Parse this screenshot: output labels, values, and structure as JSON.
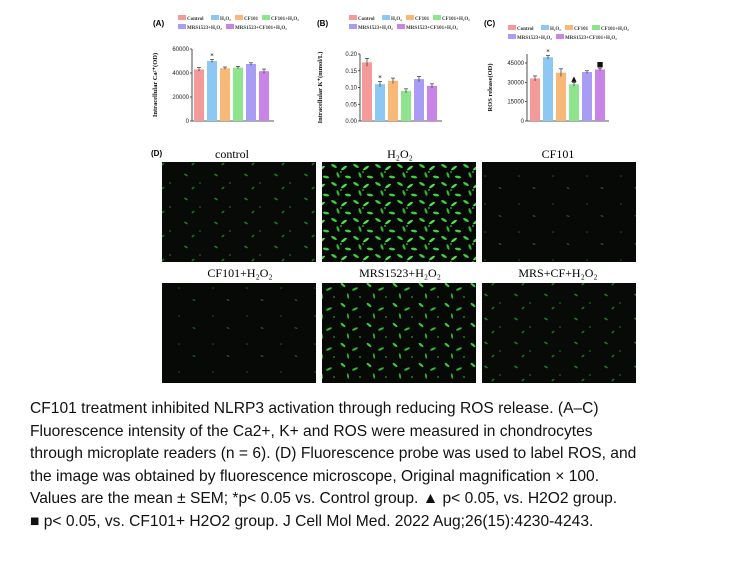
{
  "figure": {
    "panel_labels": {
      "a": "(A)",
      "b": "(B)",
      "c": "(C)",
      "d": "(D)"
    },
    "legend": {
      "control": "Control",
      "h2o2": "H₂O₂",
      "cf101": "CF101",
      "cf101_h2o2": "CF101+H₂O₂",
      "mrs1523_h2o2": "MRS1523+H₂O₂",
      "mrs1523_cf101_h2o2": "MRS1523+CF101+H₂O₂"
    },
    "micrograph_labels": [
      "control",
      "H₂O₂",
      "CF101",
      "CF101+H₂O₂",
      "MRS1523+H₂O₂",
      "MRS+CF+H₂O₂"
    ]
  },
  "colors": {
    "control": "#f59a9a",
    "h2o2": "#8cc8f2",
    "cf101": "#f8b978",
    "cf101_h2o2": "#8ee48c",
    "mrs1523_h2o2": "#a99cf4",
    "mrs1523_cf101_h2o2": "#c883e6"
  },
  "chart_data": [
    {
      "type": "bar",
      "panel": "(A)",
      "ylabel": "Intracellular Ca²⁺(OD)",
      "categories": [
        "Control",
        "H₂O₂",
        "CF101",
        "CF101+H₂O₂",
        "MRS1523+H₂O₂",
        "MRS1523+CF101+H₂O₂"
      ],
      "values": [
        43000,
        50000,
        44000,
        44500,
        47500,
        41500
      ],
      "errors": [
        1500,
        1200,
        1000,
        1000,
        1000,
        1800
      ],
      "markers": [
        "",
        "*",
        "",
        "",
        "",
        ""
      ],
      "yticks": [
        "0",
        "20000",
        "40000",
        "60000"
      ],
      "ylim": [
        0,
        60000
      ]
    },
    {
      "type": "bar",
      "panel": "(B)",
      "ylabel": "Intracellular K⁺(mmol/L)",
      "categories": [
        "Control",
        "H₂O₂",
        "CF101",
        "CF101+H₂O₂",
        "MRS1523+H₂O₂",
        "MRS1523+CF101+H₂O₂"
      ],
      "values": [
        0.175,
        0.11,
        0.12,
        0.09,
        0.125,
        0.105
      ],
      "errors": [
        0.012,
        0.008,
        0.008,
        0.006,
        0.008,
        0.006
      ],
      "markers": [
        "",
        "*",
        "",
        "",
        "",
        ""
      ],
      "yticks": [
        "0.00",
        "0.05",
        "0.10",
        "0.15",
        "0.20"
      ],
      "ylim": [
        0,
        0.2
      ]
    },
    {
      "type": "bar",
      "panel": "(C)",
      "ylabel": "ROS release(OD)",
      "categories": [
        "Control",
        "H₂O₂",
        "CF101",
        "CF101+H₂O₂",
        "MRS1523+H₂O₂",
        "MRS1523+CF101+H₂O₂"
      ],
      "values": [
        33000,
        49500,
        37500,
        28500,
        38000,
        40000
      ],
      "errors": [
        2000,
        1500,
        3000,
        1500,
        1000,
        1000
      ],
      "markers": [
        "",
        "*",
        "",
        "▲",
        "",
        "■"
      ],
      "yticks": [
        "0",
        "15000",
        "30000",
        "45000"
      ],
      "ylim": [
        0,
        52000
      ]
    }
  ],
  "caption": {
    "lines": [
      "CF101 treatment inhibited NLRP3 activation through reducing ROS release. (A–C)",
      "Fluorescence intensity of the Ca2+, K+ and ROS were measured in chondrocytes",
      "through microplate readers (n = 6). (D) Fluorescence probe was used to label ROS, and",
      "the image was obtained by fluorescence microscope, Original magnification × 100.",
      "Values are the mean ± SEM; *p< 0.05 vs. Control group. ▲ p< 0.05, vs. H2O2 group.",
      "■ p< 0.05, vs. CF101+ H2O2 group. J Cell Mol Med. 2022 Aug;26(15):4230-4243."
    ]
  }
}
